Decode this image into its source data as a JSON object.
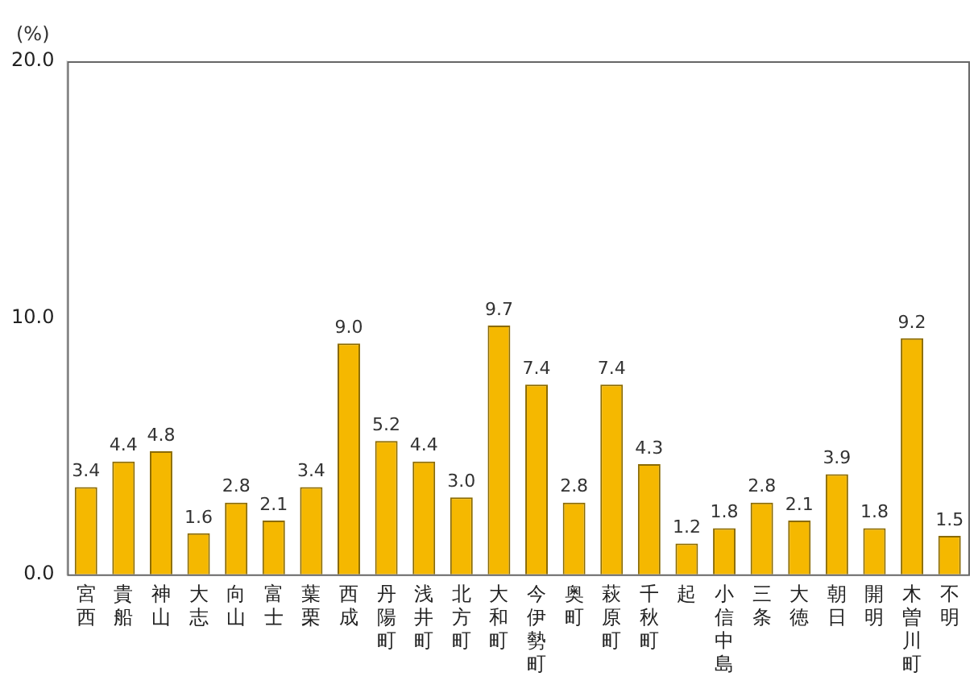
{
  "chart_data": {
    "type": "bar",
    "ylabel": "(%)",
    "categories": [
      "宮西",
      "貴船",
      "神山",
      "大志",
      "向山",
      "富士",
      "葉栗",
      "西成",
      "丹陽町",
      "浅井町",
      "北方町",
      "大和町",
      "今伊勢町",
      "奥町",
      "萩原町",
      "千秋町",
      "起",
      "小信中島",
      "三条",
      "大徳",
      "朝日",
      "開明",
      "木曽川町",
      "不明"
    ],
    "values": [
      3.4,
      4.4,
      4.8,
      1.6,
      2.8,
      2.1,
      3.4,
      9.0,
      5.2,
      4.4,
      3.0,
      9.7,
      7.4,
      2.8,
      7.4,
      4.3,
      1.2,
      1.8,
      2.8,
      2.1,
      3.9,
      1.8,
      9.2,
      1.5
    ],
    "value_labels": [
      "3.4",
      "4.4",
      "4.8",
      "1.6",
      "2.8",
      "2.1",
      "3.4",
      "9.0",
      "5.2",
      "4.4",
      "3.0",
      "9.7",
      "7.4",
      "2.8",
      "7.4",
      "4.3",
      "1.2",
      "1.8",
      "2.8",
      "2.1",
      "3.9",
      "1.8",
      "9.2",
      "1.5"
    ],
    "color": "#f5b800",
    "ylim": [
      0,
      20
    ],
    "yticks": [
      {
        "value": 0,
        "label": "0.0"
      },
      {
        "value": 10,
        "label": "10.0"
      },
      {
        "value": 20,
        "label": "20.0"
      }
    ],
    "grid": false,
    "legend": false
  }
}
